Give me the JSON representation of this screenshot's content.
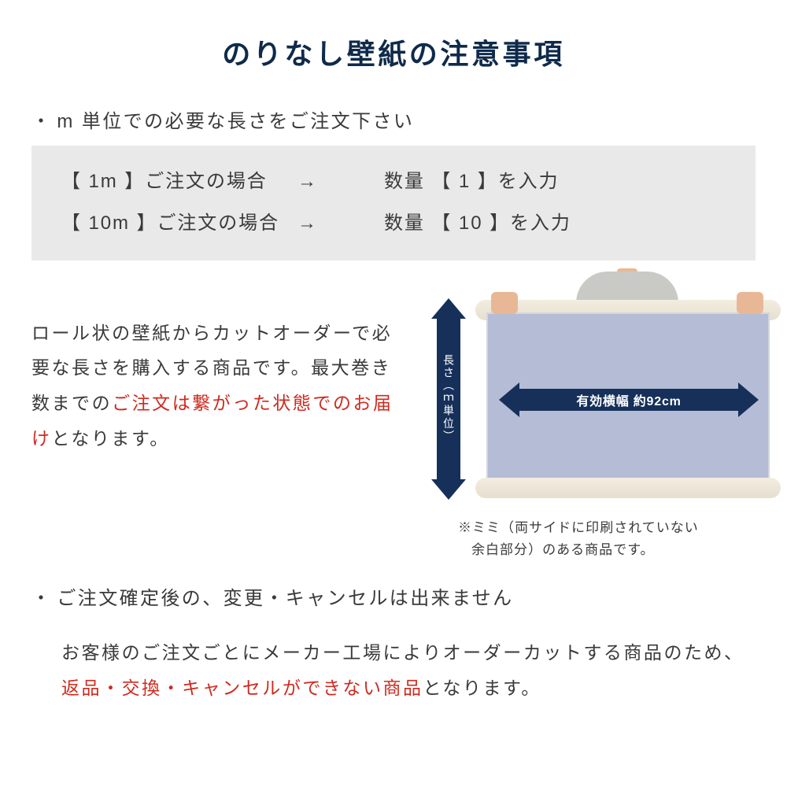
{
  "colors": {
    "title": "#0f2a4a",
    "text": "#3a3a3a",
    "emphasis": "#cf2a1f",
    "arrow": "#16305a",
    "example_bg": "#e9e9e9",
    "sheet": "#b4bdd5",
    "roll": "#e6dfcf",
    "skin": "#e8b896",
    "shirt": "#c9cac6"
  },
  "title": "のりなし壁紙の注意事項",
  "bullet1": "m 単位での必要な長さをご注文下さい",
  "examples": [
    {
      "left": "【 1m 】ご注文の場合",
      "arrow": "→",
      "right": "数量 【 1 】を入力"
    },
    {
      "left": "【 10m 】ご注文の場合",
      "arrow": "→",
      "right": "数量 【 10 】を入力"
    }
  ],
  "mid_text": {
    "line1": "ロール状の壁紙からカットオーダーで必要な長さを購入する商品です。最大巻き数までの",
    "em1": "ご注文は繋がった状態でのお届け",
    "line2": "となります。"
  },
  "diagram": {
    "v_label": "長さ（ｍ単位）",
    "h_label": "有効横幅 約92cm",
    "note_l1": "※ミミ（両サイドに印刷されていない",
    "note_l2": "余白部分）のある商品です。"
  },
  "bullet2": "ご注文確定後の、変更・キャンセルは出来ません",
  "body2": {
    "p1": "お客様のご注文ごとにメーカー工場によりオーダーカットする商品のため、",
    "em": "返品・交換・キャンセルができない商品",
    "p2": "となります。"
  }
}
